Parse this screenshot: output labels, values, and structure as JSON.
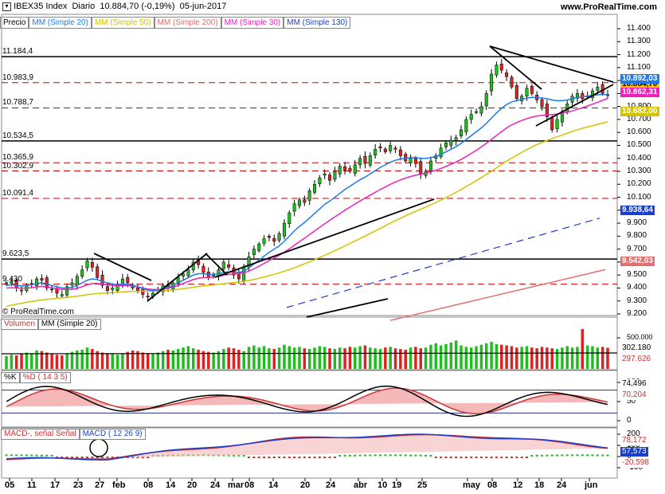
{
  "header": {
    "instrument": "IBEX35 Index",
    "timeframe": "Diario",
    "quote": "10.884,70 (-0,19%)",
    "date": "05-jun-2017",
    "site": "www.ProRealTime.com",
    "copyright": "© ProRealTime.com"
  },
  "legend": {
    "price": "Precio",
    "ma20": "MM (Simple 20)",
    "ma50": "MM (Simple 50)",
    "ma200": "MM (Simple 200)",
    "ma30": "MM (Simple 30)",
    "ma130": "MM (Simple 130)"
  },
  "colors": {
    "up": "#22bb22",
    "down": "#dd2222",
    "ma20": "#1e7ae8",
    "ma50": "#d4c400",
    "ma200": "#e07070",
    "ma30": "#ee22bb",
    "ma130": "#1a3ecc",
    "level": "#cc0000"
  },
  "chart_data": {
    "type": "candlestick",
    "x_ticks": [
      "05",
      "11",
      "17",
      "23",
      "27",
      "feb",
      "08",
      "14",
      "20",
      "24",
      "mar",
      "08",
      "14",
      "20",
      "24",
      "abr",
      "10",
      "19",
      "25",
      "may",
      "08",
      "12",
      "18",
      "24",
      "jun"
    ],
    "price_panel": {
      "ylim": [
        9100,
        11450
      ],
      "y_ticks": [
        "11.400",
        "11.300",
        "11.200",
        "11.100",
        "11.000",
        "10.900",
        "10.800",
        "10.700",
        "10.600",
        "10.500",
        "10.400",
        "10.300",
        "10.200",
        "10.100",
        "10.000",
        "9.900",
        "9.800",
        "9.700",
        "9.600",
        "9.500",
        "9.400",
        "9.300",
        "9.200"
      ],
      "levels": [
        {
          "label": "11.184,4",
          "value": 11184.4,
          "style": "solid"
        },
        {
          "label": "10.983,9",
          "value": 10983.9,
          "style": "dashed"
        },
        {
          "label": "10.788,7",
          "value": 10788.7,
          "style": "dashed"
        },
        {
          "label": "10.534,5",
          "value": 10534.5,
          "style": "solid"
        },
        {
          "label": "10.365,9",
          "value": 10365.9,
          "style": "dashed"
        },
        {
          "label": "10.302,9",
          "value": 10302.9,
          "style": "dashed"
        },
        {
          "label": "10.091,4",
          "value": 10091.4,
          "style": "dashed"
        },
        {
          "label": "9.623,5",
          "value": 9623.5,
          "style": "solid"
        },
        {
          "label": "9.430",
          "value": 9430,
          "style": "dashed"
        }
      ],
      "last_values": [
        {
          "label": "10.884,70",
          "color": "#ffc000",
          "text": "#000"
        },
        {
          "label": "10.892,03",
          "color": "#1e7ae8",
          "text": "#fff"
        },
        {
          "label": "10.862,31",
          "color": "#ee22bb",
          "text": "#fff"
        },
        {
          "label": "10.682,00",
          "color": "#d4c400",
          "text": "#fff"
        },
        {
          "label": "9.938,64",
          "color": "#1a3ecc",
          "text": "#fff"
        },
        {
          "label": "9.542,03",
          "color": "#e07070",
          "text": "#fff"
        }
      ],
      "close_path": [
        9440,
        9450,
        9400,
        9380,
        9420,
        9430,
        9470,
        9460,
        9400,
        9390,
        9360,
        9350,
        9410,
        9440,
        9490,
        9540,
        9610,
        9560,
        9480,
        9420,
        9380,
        9400,
        9430,
        9470,
        9440,
        9400,
        9380,
        9350,
        9330,
        9360,
        9380,
        9420,
        9410,
        9440,
        9480,
        9510,
        9540,
        9600,
        9580,
        9520,
        9480,
        9500,
        9540,
        9600,
        9560,
        9500,
        9470,
        9560,
        9640,
        9700,
        9740,
        9780,
        9790,
        9760,
        9820,
        9900,
        9980,
        10050,
        10080,
        10060,
        10150,
        10200,
        10250,
        10280,
        10230,
        10300,
        10340,
        10310,
        10300,
        10350,
        10400,
        10360,
        10420,
        10470,
        10480,
        10450,
        10500,
        10470,
        10420,
        10380,
        10400,
        10360,
        10280,
        10300,
        10380,
        10420,
        10480,
        10520,
        10540,
        10560,
        10620,
        10700,
        10740,
        10760,
        10800,
        10900,
        11050,
        11120,
        11080,
        11030,
        10950,
        10860,
        10880,
        10940,
        10900,
        10850,
        10800,
        10720,
        10620,
        10700,
        10760,
        10820,
        10880,
        10900,
        10860,
        10880,
        10920,
        10950,
        10900,
        10884.7
      ],
      "ma20_path": [
        9420,
        9425,
        9420,
        9415,
        9420,
        9425,
        9435,
        9440,
        9430,
        9420,
        9410,
        9400,
        9400,
        9405,
        9420,
        9440,
        9460,
        9470,
        9465,
        9450,
        9440,
        9430,
        9425,
        9430,
        9430,
        9420,
        9410,
        9395,
        9385,
        9380,
        9385,
        9395,
        9405,
        9420,
        9440,
        9460,
        9480,
        9500,
        9510,
        9510,
        9505,
        9505,
        9510,
        9520,
        9525,
        9525,
        9520,
        9530,
        9555,
        9585,
        9615,
        9645,
        9675,
        9700,
        9725,
        9760,
        9800,
        9840,
        9875,
        9905,
        9940,
        9975,
        10010,
        10045,
        10070,
        10100,
        10130,
        10160,
        10185,
        10210,
        10235,
        10255,
        10280,
        10305,
        10330,
        10350,
        10370,
        10385,
        10395,
        10400,
        10405,
        10405,
        10400,
        10400,
        10405,
        10415,
        10430,
        10450,
        10470,
        10490,
        10515,
        10545,
        10575,
        10605,
        10635,
        10670,
        10710,
        10750,
        10785,
        10815,
        10835,
        10845,
        10855,
        10865,
        10870,
        10870,
        10865,
        10860,
        10850,
        10845,
        10845,
        10850,
        10860,
        10870,
        10875,
        10880,
        10885,
        10890,
        10892,
        10892
      ],
      "ma30_path": [
        9400,
        9402,
        9400,
        9398,
        9400,
        9402,
        9408,
        9412,
        9408,
        9402,
        9396,
        9390,
        9388,
        9390,
        9398,
        9410,
        9425,
        9435,
        9435,
        9430,
        9425,
        9420,
        9418,
        9420,
        9420,
        9415,
        9408,
        9400,
        9392,
        9388,
        9388,
        9392,
        9398,
        9408,
        9420,
        9435,
        9450,
        9465,
        9475,
        9480,
        9482,
        9485,
        9490,
        9498,
        9505,
        9510,
        9512,
        9518,
        9530,
        9548,
        9568,
        9590,
        9612,
        9632,
        9652,
        9676,
        9702,
        9730,
        9758,
        9785,
        9812,
        9840,
        9868,
        9896,
        9922,
        9948,
        9974,
        10000,
        10024,
        10048,
        10072,
        10094,
        10116,
        10138,
        10160,
        10180,
        10200,
        10218,
        10234,
        10248,
        10260,
        10270,
        10278,
        10286,
        10296,
        10308,
        10322,
        10338,
        10354,
        10372,
        10392,
        10414,
        10438,
        10462,
        10488,
        10516,
        10546,
        10576,
        10606,
        10634,
        10658,
        10676,
        10692,
        10706,
        10718,
        10726,
        10732,
        10736,
        10738,
        10742,
        10748,
        10756,
        10766,
        10778,
        10790,
        10804,
        10818,
        10832,
        10848,
        10862
      ],
      "ma50_path": [
        9260,
        9268,
        9275,
        9282,
        9290,
        9296,
        9302,
        9308,
        9312,
        9316,
        9320,
        9324,
        9328,
        9332,
        9337,
        9342,
        9348,
        9353,
        9357,
        9360,
        9362,
        9364,
        9367,
        9370,
        9372,
        9374,
        9375,
        9376,
        9376,
        9376,
        9377,
        9379,
        9382,
        9385,
        9390,
        9395,
        9400,
        9406,
        9411,
        9416,
        9420,
        9424,
        9428,
        9433,
        9438,
        9442,
        9446,
        9451,
        9458,
        9466,
        9475,
        9485,
        9495,
        9506,
        9517,
        9529,
        9542,
        9556,
        9571,
        9586,
        9602,
        9618,
        9635,
        9652,
        9670,
        9688,
        9706,
        9725,
        9744,
        9763,
        9782,
        9801,
        9820,
        9840,
        9860,
        9880,
        9900,
        9920,
        9938,
        9956,
        9974,
        9992,
        10008,
        10024,
        10042,
        10060,
        10078,
        10098,
        10118,
        10138,
        10160,
        10182,
        10204,
        10228,
        10252,
        10276,
        10300,
        10326,
        10352,
        10378,
        10402,
        10424,
        10446,
        10468,
        10488,
        10506,
        10522,
        10538,
        10552,
        10566,
        10580,
        10594,
        10608,
        10620,
        10632,
        10642,
        10652,
        10662,
        10672,
        10682
      ],
      "ma130_start": 9200,
      "ma130_end": 9938.64,
      "ma200_start": 9080,
      "ma200_end": 9542.03
    },
    "volume_panel": {
      "label": "Volumen",
      "ma_label": "MM (Simple 20)",
      "y_ticks": [
        "500.000"
      ],
      "last_values": [
        {
          "label": "302.180",
          "color": "#ffffff",
          "text": "#000"
        },
        {
          "label": "297.626",
          "color": "#ffffff",
          "text": "#cc3333"
        }
      ],
      "bars": [
        180,
        200,
        190,
        210,
        230,
        220,
        260,
        250,
        230,
        210,
        200,
        190,
        220,
        240,
        260,
        270,
        300,
        280,
        250,
        230,
        220,
        210,
        200,
        220,
        240,
        260,
        250,
        230,
        220,
        210,
        230,
        250,
        270,
        260,
        280,
        300,
        320,
        290,
        270,
        250,
        240,
        230,
        250,
        280,
        300,
        290,
        270,
        250,
        310,
        330,
        300,
        320,
        290,
        280,
        300,
        340,
        320,
        300,
        310,
        290,
        280,
        300,
        320,
        310,
        290,
        280,
        300,
        290,
        310,
        300,
        320,
        330,
        300,
        290,
        280,
        300,
        310,
        290,
        280,
        270,
        300,
        310,
        290,
        300,
        340,
        360,
        330,
        350,
        370,
        400,
        330,
        310,
        300,
        320,
        340,
        360,
        380,
        350,
        340,
        330,
        320,
        300,
        310,
        320,
        300,
        290,
        310,
        300,
        290,
        280,
        300,
        320,
        300,
        310,
        560,
        330,
        320,
        300,
        310,
        297.6
      ]
    },
    "stoch_panel": {
      "k_label": "%K",
      "d_label": "%D ( 14 3 5)",
      "y_ticks": [
        "100",
        "50",
        "0"
      ],
      "last_values": [
        {
          "label": "74,496",
          "color": "#ffffff",
          "text": "#000"
        },
        {
          "label": "70,204",
          "color": "#ffffff",
          "text": "#cc3333"
        }
      ]
    },
    "macd_panel": {
      "label": "MACD-, señal Señal",
      "macd_label": "MACD ( 12 26 9)",
      "y_ticks": [
        "200",
        "100",
        "0",
        "-100"
      ],
      "last_values": [
        {
          "label": "78,172",
          "color": "#ffffff",
          "text": "#cc3333"
        },
        {
          "label": "57,573",
          "color": "#1a3ecc",
          "text": "#fff"
        },
        {
          "label": "-20,598",
          "color": "#ffffff",
          "text": "#cc3333"
        }
      ]
    }
  }
}
